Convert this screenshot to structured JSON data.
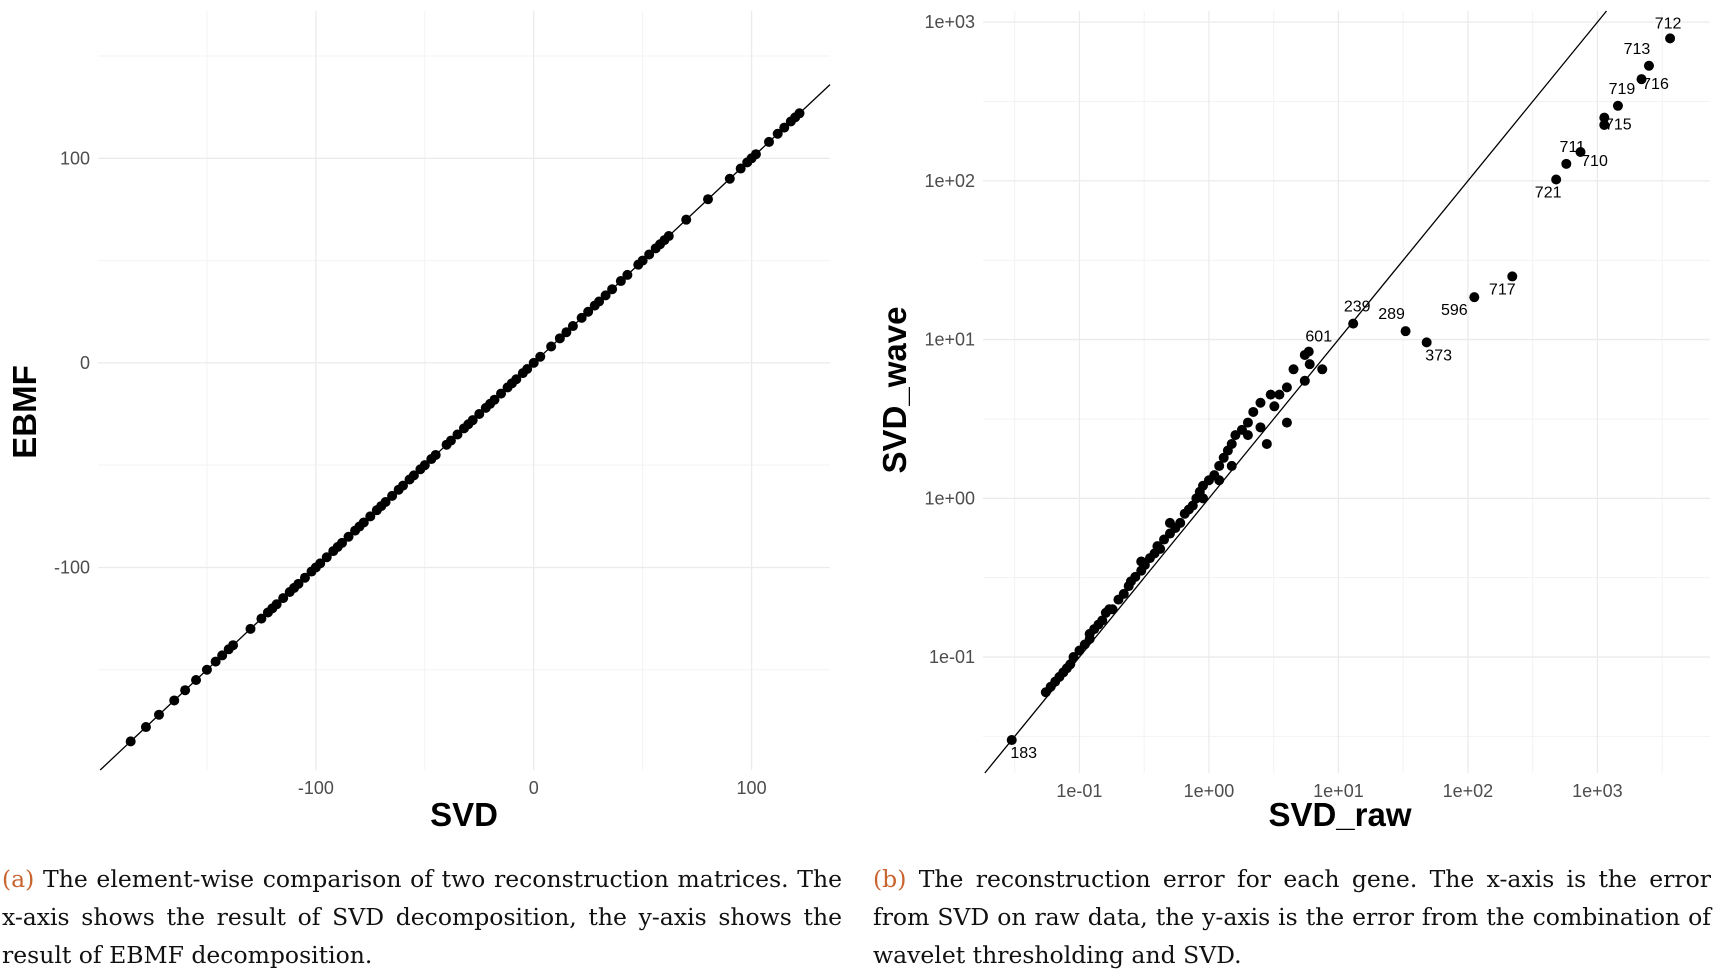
{
  "chart_data": [
    {
      "type": "scatter",
      "xlabel": "SVD",
      "ylabel": "EBMF",
      "xlim": [
        -200,
        136
      ],
      "ylim": [
        -199,
        172
      ],
      "xticks": [
        -100,
        0,
        100
      ],
      "yticks": [
        -100,
        0,
        100
      ],
      "xtick_labels": [
        "-100",
        "0",
        "100"
      ],
      "ytick_labels": [
        "-100",
        "0",
        "100"
      ],
      "grid": true,
      "reference_line": "y = x",
      "x": [
        -185,
        -178,
        -172,
        -165,
        -160,
        -155,
        -150,
        -146,
        -143,
        -140,
        -138,
        -130,
        -125,
        -122,
        -120,
        -118,
        -115,
        -112,
        -110,
        -108,
        -105,
        -102,
        -100,
        -98,
        -95,
        -92,
        -90,
        -88,
        -85,
        -82,
        -80,
        -78,
        -75,
        -72,
        -70,
        -68,
        -65,
        -62,
        -60,
        -57,
        -55,
        -52,
        -50,
        -47,
        -45,
        -40,
        -38,
        -35,
        -32,
        -30,
        -28,
        -25,
        -22,
        -20,
        -18,
        -15,
        -12,
        -10,
        -8,
        -5,
        -3,
        0,
        3,
        8,
        12,
        15,
        18,
        22,
        25,
        28,
        30,
        33,
        36,
        40,
        43,
        48,
        50,
        53,
        56,
        58,
        60,
        62,
        70,
        80,
        90,
        95,
        98,
        100,
        102,
        108,
        112,
        115,
        118,
        120,
        122
      ],
      "y": [
        -185,
        -178,
        -172,
        -165,
        -160,
        -155,
        -150,
        -146,
        -143,
        -140,
        -138,
        -130,
        -125,
        -122,
        -120,
        -118,
        -115,
        -112,
        -110,
        -108,
        -105,
        -102,
        -100,
        -98,
        -95,
        -92,
        -90,
        -88,
        -85,
        -82,
        -80,
        -78,
        -75,
        -72,
        -70,
        -68,
        -65,
        -62,
        -60,
        -57,
        -55,
        -52,
        -50,
        -47,
        -45,
        -40,
        -38,
        -35,
        -32,
        -30,
        -28,
        -25,
        -22,
        -20,
        -18,
        -15,
        -12,
        -10,
        -8,
        -5,
        -3,
        0,
        3,
        8,
        12,
        15,
        18,
        22,
        25,
        28,
        30,
        33,
        36,
        40,
        43,
        48,
        50,
        53,
        56,
        58,
        60,
        62,
        70,
        80,
        90,
        95,
        98,
        100,
        102,
        108,
        112,
        115,
        118,
        120,
        122
      ]
    },
    {
      "type": "scatter",
      "xlabel": "SVD_raw",
      "ylabel": "SVD_wave",
      "xscale": "log",
      "yscale": "log",
      "xlim": [
        0.018,
        7400
      ],
      "ylim": [
        0.0186,
        1175
      ],
      "xticks": [
        0.1,
        1,
        10,
        100,
        1000
      ],
      "yticks": [
        0.1,
        1,
        10,
        100,
        1000
      ],
      "xtick_labels": [
        "1e-01",
        "1e+00",
        "1e+01",
        "1e+02",
        "1e+03"
      ],
      "ytick_labels": [
        "1e-01",
        "1e+00",
        "1e+01",
        "1e+02",
        "1e+03"
      ],
      "grid": true,
      "reference_line": "y = x",
      "labeled_points": [
        {
          "label": "712",
          "x": 3640,
          "y": 790
        },
        {
          "label": "713",
          "x": 2500,
          "y": 531
        },
        {
          "label": "716",
          "x": 2190,
          "y": 437
        },
        {
          "label": "719",
          "x": 1440,
          "y": 297
        },
        {
          "label": "715",
          "x": 1130,
          "y": 250
        },
        {
          "label": "710",
          "x": 740,
          "y": 152
        },
        {
          "label": "711",
          "x": 575,
          "y": 128
        },
        {
          "label": "721",
          "x": 480,
          "y": 102
        },
        {
          "label": "717",
          "x": 220,
          "y": 25
        },
        {
          "label": "596",
          "x": 112,
          "y": 18.5
        },
        {
          "label": "373",
          "x": 48,
          "y": 9.6
        },
        {
          "label": "289",
          "x": 33,
          "y": 11.3
        },
        {
          "label": "239",
          "x": 13,
          "y": 12.6
        },
        {
          "label": "601",
          "x": 5.9,
          "y": 8.4
        },
        {
          "label": "183",
          "x": 0.03,
          "y": 0.03
        }
      ],
      "points": [
        [
          1130,
          225
        ],
        [
          0.055,
          0.06
        ],
        [
          0.06,
          0.065
        ],
        [
          0.065,
          0.07
        ],
        [
          0.07,
          0.075
        ],
        [
          0.075,
          0.08
        ],
        [
          0.08,
          0.085
        ],
        [
          0.085,
          0.09
        ],
        [
          0.09,
          0.1
        ],
        [
          0.1,
          0.11
        ],
        [
          0.11,
          0.12
        ],
        [
          0.12,
          0.13
        ],
        [
          0.13,
          0.15
        ],
        [
          0.14,
          0.16
        ],
        [
          0.15,
          0.17
        ],
        [
          0.16,
          0.19
        ],
        [
          0.17,
          0.2
        ],
        [
          0.18,
          0.2
        ],
        [
          0.2,
          0.23
        ],
        [
          0.22,
          0.25
        ],
        [
          0.24,
          0.28
        ],
        [
          0.25,
          0.3
        ],
        [
          0.27,
          0.32
        ],
        [
          0.3,
          0.35
        ],
        [
          0.32,
          0.38
        ],
        [
          0.35,
          0.42
        ],
        [
          0.38,
          0.45
        ],
        [
          0.4,
          0.5
        ],
        [
          0.42,
          0.48
        ],
        [
          0.45,
          0.55
        ],
        [
          0.5,
          0.6
        ],
        [
          0.55,
          0.65
        ],
        [
          0.6,
          0.7
        ],
        [
          0.65,
          0.8
        ],
        [
          0.7,
          0.85
        ],
        [
          0.75,
          0.9
        ],
        [
          0.8,
          1.0
        ],
        [
          0.85,
          1.1
        ],
        [
          0.9,
          1.2
        ],
        [
          1.0,
          1.3
        ],
        [
          1.1,
          1.4
        ],
        [
          1.2,
          1.6
        ],
        [
          1.3,
          1.8
        ],
        [
          1.4,
          2.0
        ],
        [
          1.5,
          2.2
        ],
        [
          1.6,
          2.5
        ],
        [
          1.8,
          2.7
        ],
        [
          2.0,
          3.0
        ],
        [
          2.2,
          3.5
        ],
        [
          2.5,
          4.0
        ],
        [
          3.0,
          4.5
        ],
        [
          3.5,
          4.5
        ],
        [
          4.0,
          5.0
        ],
        [
          2.8,
          2.2
        ],
        [
          3.2,
          3.8
        ],
        [
          4.5,
          6.5
        ],
        [
          5.5,
          5.5
        ],
        [
          6,
          7
        ],
        [
          5.5,
          8
        ],
        [
          7.5,
          6.5
        ],
        [
          1.5,
          1.6
        ],
        [
          0.3,
          0.4
        ],
        [
          0.5,
          0.7
        ],
        [
          2.0,
          2.5
        ],
        [
          0.12,
          0.14
        ],
        [
          0.9,
          1.0
        ],
        [
          1.2,
          1.3
        ],
        [
          2.5,
          2.8
        ],
        [
          4,
          3
        ]
      ]
    }
  ],
  "captions": {
    "a": {
      "tag": "(a)",
      "text": "The element-wise comparison of two reconstruction matrices. The x-axis shows the result of SVD decomposition, the y-axis shows the result of EBMF decomposition."
    },
    "b": {
      "tag": "(b)",
      "text": "The reconstruction error for each gene. The x-axis is the error from SVD on raw data, the y-axis is the error from the combination of wavelet thresholding and SVD."
    }
  }
}
